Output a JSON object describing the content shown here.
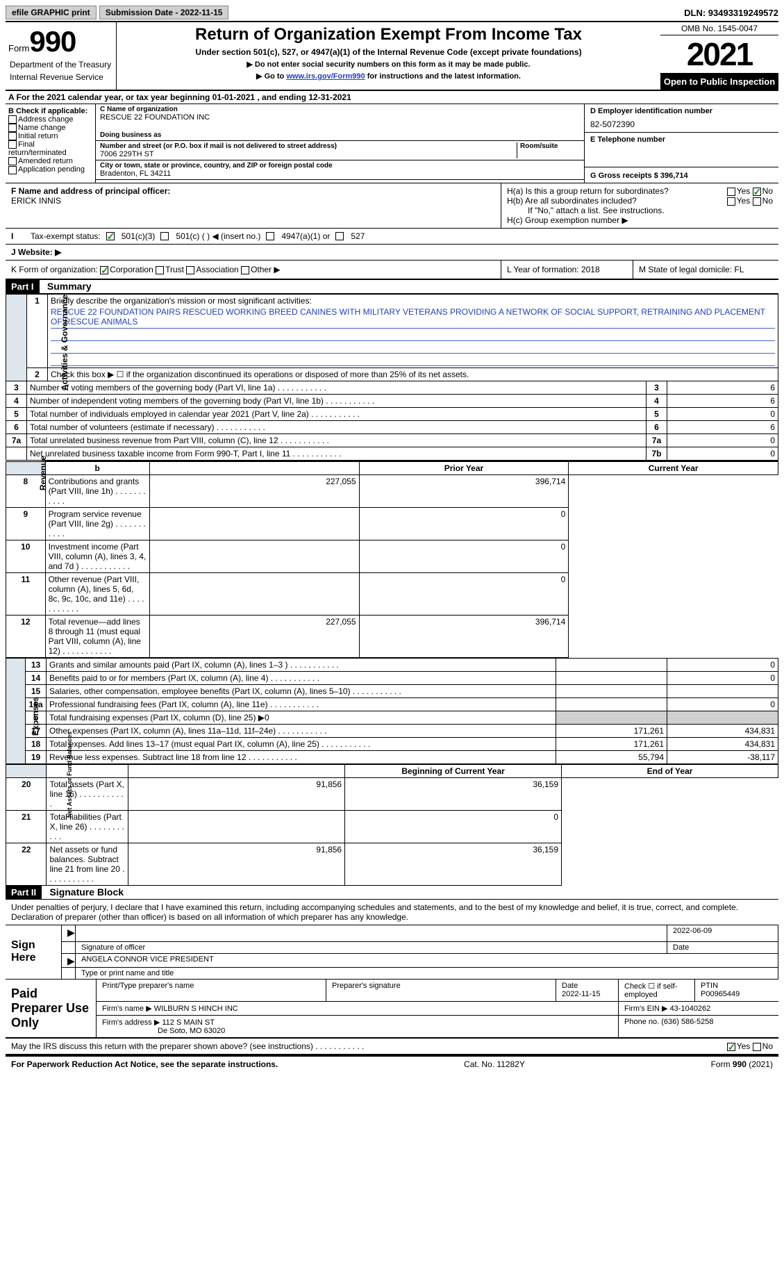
{
  "topbar": {
    "efile_btn": "efile GRAPHIC print",
    "sub_date_label": "Submission Date - 2022-11-15",
    "dln": "DLN: 93493319249572"
  },
  "header": {
    "form_word": "Form",
    "form_num": "990",
    "title": "Return of Organization Exempt From Income Tax",
    "subtitle": "Under section 501(c), 527, or 4947(a)(1) of the Internal Revenue Code (except private foundations)",
    "instr1": "▶ Do not enter social security numbers on this form as it may be made public.",
    "instr2_pre": "▶ Go to ",
    "instr2_link": "www.irs.gov/Form990",
    "instr2_post": " for instructions and the latest information.",
    "dept": "Department of the Treasury",
    "irs": "Internal Revenue Service",
    "omb": "OMB No. 1545-0047",
    "year": "2021",
    "open": "Open to Public Inspection"
  },
  "rowA": {
    "text": "A For the 2021 calendar year, or tax year beginning 01-01-2021   , and ending 12-31-2021"
  },
  "colB": {
    "label": "B Check if applicable:",
    "opts": [
      "Address change",
      "Name change",
      "Initial return",
      "Final return/terminated",
      "Amended return",
      "Application pending"
    ]
  },
  "colC": {
    "name_label": "C Name of organization",
    "name": "RESCUE 22 FOUNDATION INC",
    "dba_label": "Doing business as",
    "addr_label": "Number and street (or P.O. box if mail is not delivered to street address)",
    "room_label": "Room/suite",
    "addr": "7006 229TH ST",
    "city_label": "City or town, state or province, country, and ZIP or foreign postal code",
    "city": "Bradenton, FL  34211"
  },
  "colD": {
    "ein_label": "D Employer identification number",
    "ein": "82-5072390",
    "tel_label": "E Telephone number",
    "gross_label": "G Gross receipts $ 396,714"
  },
  "sectionF": {
    "label": "F  Name and address of principal officer:",
    "name": "ERICK INNIS"
  },
  "sectionH": {
    "a": "H(a)  Is this a group return for subordinates?",
    "b": "H(b)  Are all subordinates included?",
    "b_note": "If \"No,\" attach a list. See instructions.",
    "c": "H(c)  Group exemption number ▶",
    "yes": "Yes",
    "no": "No"
  },
  "rowI": {
    "label": "Tax-exempt status:",
    "opt1": "501(c)(3)",
    "opt2": "501(c) (  ) ◀ (insert no.)",
    "opt3": "4947(a)(1) or",
    "opt4": "527"
  },
  "rowJ": {
    "label": "J   Website: ▶"
  },
  "rowK": {
    "label": "K Form of organization:",
    "opts": [
      "Corporation",
      "Trust",
      "Association",
      "Other ▶"
    ],
    "year_label": "L Year of formation: 2018",
    "state_label": "M State of legal domicile: FL"
  },
  "part1": {
    "header": "Part I",
    "title": "Summary",
    "q1_label": "Briefly describe the organization's mission or most significant activities:",
    "q1_text": "RESCUE 22 FOUNDATION PAIRS RESCUED WORKING BREED CANINES WITH MILITARY VETERANS PROVIDING A NETWORK OF SOCIAL SUPPORT, RETRAINING AND PLACEMENT OF RESCUE ANIMALS",
    "q2": "Check this box ▶ ☐  if the organization discontinued its operations or disposed of more than 25% of its net assets.",
    "side_gov": "Activities & Governance",
    "side_rev": "Revenue",
    "side_exp": "Expenses",
    "side_net": "Net Assets or Fund Balances",
    "prior_year": "Prior Year",
    "current_year": "Current Year",
    "beg_year": "Beginning of Current Year",
    "end_year": "End of Year",
    "lines": [
      {
        "n": "3",
        "t": "Number of voting members of the governing body (Part VI, line 1a)",
        "ref": "3",
        "v": "6"
      },
      {
        "n": "4",
        "t": "Number of independent voting members of the governing body (Part VI, line 1b)",
        "ref": "4",
        "v": "6"
      },
      {
        "n": "5",
        "t": "Total number of individuals employed in calendar year 2021 (Part V, line 2a)",
        "ref": "5",
        "v": "0"
      },
      {
        "n": "6",
        "t": "Total number of volunteers (estimate if necessary)",
        "ref": "6",
        "v": "6"
      },
      {
        "n": "7a",
        "t": "Total unrelated business revenue from Part VIII, column (C), line 12",
        "ref": "7a",
        "v": "0"
      },
      {
        "n": "",
        "t": "Net unrelated business taxable income from Form 990-T, Part I, line 11",
        "ref": "7b",
        "v": "0"
      }
    ],
    "rev_lines": [
      {
        "n": "8",
        "t": "Contributions and grants (Part VIII, line 1h)",
        "py": "227,055",
        "cy": "396,714"
      },
      {
        "n": "9",
        "t": "Program service revenue (Part VIII, line 2g)",
        "py": "",
        "cy": "0"
      },
      {
        "n": "10",
        "t": "Investment income (Part VIII, column (A), lines 3, 4, and 7d )",
        "py": "",
        "cy": "0"
      },
      {
        "n": "11",
        "t": "Other revenue (Part VIII, column (A), lines 5, 6d, 8c, 9c, 10c, and 11e)",
        "py": "",
        "cy": "0"
      },
      {
        "n": "12",
        "t": "Total revenue—add lines 8 through 11 (must equal Part VIII, column (A), line 12)",
        "py": "227,055",
        "cy": "396,714"
      }
    ],
    "exp_lines": [
      {
        "n": "13",
        "t": "Grants and similar amounts paid (Part IX, column (A), lines 1–3 )",
        "py": "",
        "cy": "0"
      },
      {
        "n": "14",
        "t": "Benefits paid to or for members (Part IX, column (A), line 4)",
        "py": "",
        "cy": "0"
      },
      {
        "n": "15",
        "t": "Salaries, other compensation, employee benefits (Part IX, column (A), lines 5–10)",
        "py": "",
        "cy": ""
      },
      {
        "n": "16a",
        "t": "Professional fundraising fees (Part IX, column (A), line 11e)",
        "py": "",
        "cy": "0"
      },
      {
        "n": "b",
        "t": "Total fundraising expenses (Part IX, column (D), line 25) ▶0",
        "py": "SHADE",
        "cy": "SHADE"
      },
      {
        "n": "17",
        "t": "Other expenses (Part IX, column (A), lines 11a–11d, 11f–24e)",
        "py": "171,261",
        "cy": "434,831"
      },
      {
        "n": "18",
        "t": "Total expenses. Add lines 13–17 (must equal Part IX, column (A), line 25)",
        "py": "171,261",
        "cy": "434,831"
      },
      {
        "n": "19",
        "t": "Revenue less expenses. Subtract line 18 from line 12",
        "py": "55,794",
        "cy": "-38,117"
      }
    ],
    "net_lines": [
      {
        "n": "20",
        "t": "Total assets (Part X, line 16)",
        "py": "91,856",
        "cy": "36,159"
      },
      {
        "n": "21",
        "t": "Total liabilities (Part X, line 26)",
        "py": "",
        "cy": "0"
      },
      {
        "n": "22",
        "t": "Net assets or fund balances. Subtract line 21 from line 20",
        "py": "91,856",
        "cy": "36,159"
      }
    ]
  },
  "part2": {
    "header": "Part II",
    "title": "Signature Block",
    "penalties": "Under penalties of perjury, I declare that I have examined this return, including accompanying schedules and statements, and to the best of my knowledge and belief, it is true, correct, and complete. Declaration of preparer (other than officer) is based on all information of which preparer has any knowledge.",
    "sign_here": "Sign Here",
    "sig_officer": "Signature of officer",
    "sig_date": "2022-06-09",
    "date_label": "Date",
    "officer_name": "ANGELA CONNOR  VICE PRESIDENT",
    "type_name": "Type or print name and title",
    "paid_prep": "Paid Preparer Use Only",
    "prep_name_label": "Print/Type preparer's name",
    "prep_sig_label": "Preparer's signature",
    "prep_date": "2022-11-15",
    "check_self": "Check ☐ if self-employed",
    "ptin_label": "PTIN",
    "ptin": "P00965449",
    "firm_name_label": "Firm's name   ▶",
    "firm_name": "WILBURN S HINCH INC",
    "firm_ein_label": "Firm's EIN ▶",
    "firm_ein": "43-1040262",
    "firm_addr_label": "Firm's address ▶",
    "firm_addr": "112 S MAIN ST",
    "firm_city": "De Soto, MO  63020",
    "firm_phone_label": "Phone no.",
    "firm_phone": "(636) 586-5258",
    "discuss": "May the IRS discuss this return with the preparer shown above? (see instructions)"
  },
  "footer": {
    "paperwork": "For Paperwork Reduction Act Notice, see the separate instructions.",
    "cat": "Cat. No. 11282Y",
    "form": "Form 990 (2021)"
  }
}
